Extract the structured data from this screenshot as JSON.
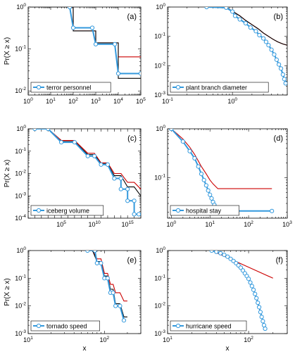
{
  "chart_data": [
    {
      "type": "line",
      "panel": "(a)",
      "x_scale": "log",
      "y_scale": "log",
      "xlim": [
        1,
        100000
      ],
      "ylim": [
        0.008,
        1
      ],
      "x_ticks": [
        1,
        10,
        100,
        1000,
        10000,
        100000
      ],
      "y_ticks": [
        0.01,
        0.1,
        1
      ],
      "ylabel": "Pr(X ≥ x)",
      "xlabel": "",
      "legend": "terror personnel",
      "legend_position": "bottom-left",
      "series": [
        {
          "name": "terror personnel",
          "color": "#3399dd",
          "marker": "circle",
          "x": [
            70,
            100,
            700,
            1000,
            7000,
            10000,
            100000
          ],
          "y": [
            1,
            0.32,
            0.32,
            0.13,
            0.13,
            0.026,
            0.026
          ]
        },
        {
          "color": "#cc0000",
          "x": [
            1,
            100,
            100,
            1000,
            1000,
            10000,
            10000,
            100000
          ],
          "y": [
            1,
            1,
            0.27,
            0.27,
            0.14,
            0.14,
            0.065,
            0.065
          ]
        },
        {
          "color": "#000000",
          "x": [
            1,
            100,
            100,
            1000,
            1000,
            10000,
            10000,
            100000
          ],
          "y": [
            1,
            1,
            0.27,
            0.27,
            0.14,
            0.14,
            0.02,
            0.02
          ]
        }
      ]
    },
    {
      "type": "line",
      "panel": "(b)",
      "x_scale": "log",
      "y_scale": "log",
      "xlim": [
        0.1,
        7
      ],
      "ylim": [
        0.001,
        1
      ],
      "x_ticks": [
        0.1,
        1
      ],
      "y_ticks": [
        0.001,
        0.01,
        0.1,
        1
      ],
      "ylabel": "",
      "xlabel": "",
      "legend": "plant branch diameter",
      "legend_position": "bottom-left",
      "series": [
        {
          "name": "plant branch diameter",
          "color": "#3399dd",
          "marker": "circle",
          "x": [
            0.4,
            0.8,
            1.0,
            1.1,
            1.3,
            1.6,
            1.9,
            2.3,
            2.6,
            3.0,
            3.3,
            3.6,
            4.0,
            4.4,
            4.8,
            5.2,
            5.6,
            6.0,
            6.3,
            6.6
          ],
          "y": [
            1,
            0.95,
            0.7,
            0.5,
            0.38,
            0.28,
            0.2,
            0.15,
            0.11,
            0.085,
            0.065,
            0.05,
            0.035,
            0.024,
            0.016,
            0.011,
            0.008,
            0.005,
            0.0035,
            0.0025
          ]
        },
        {
          "color": "#cc0000",
          "x": [
            0.4,
            0.8,
            1.0,
            1.3,
            1.6,
            2.0,
            2.5,
            3.0,
            3.6,
            4.2,
            5.0,
            6.0,
            7.0
          ],
          "y": [
            1,
            1,
            0.72,
            0.5,
            0.35,
            0.25,
            0.18,
            0.13,
            0.1,
            0.08,
            0.065,
            0.055,
            0.05
          ]
        },
        {
          "color": "#000000",
          "x": [
            0.4,
            0.8,
            1.0,
            1.3,
            1.6,
            2.0,
            2.5,
            3.0,
            3.6,
            4.2,
            5.0,
            6.0,
            7.0
          ],
          "y": [
            1,
            1,
            0.72,
            0.5,
            0.35,
            0.25,
            0.18,
            0.13,
            0.1,
            0.08,
            0.065,
            0.055,
            0.05
          ]
        }
      ]
    },
    {
      "type": "line",
      "panel": "(c)",
      "x_scale": "log",
      "y_scale": "log",
      "xlim": [
        1,
        1e+17
      ],
      "ylim": [
        0.0001,
        1
      ],
      "x_ticks": [
        100000,
        10000000000.0,
        1000000000000000.0
      ],
      "y_ticks": [
        0.0001,
        0.001,
        0.01,
        0.1,
        1
      ],
      "ylabel": "Pr(X ≥ x)",
      "xlabel": "",
      "legend": "iceberg volume",
      "legend_position": "bottom-left",
      "series": [
        {
          "name": "iceberg volume",
          "color": "#3399dd",
          "marker": "circle",
          "x": [
            10,
            1000,
            100000.0,
            10000000.0,
            1000000000.0,
            10000000000.0,
            100000000000.0,
            1000000000000.0,
            10000000000000.0,
            100000000000000.0,
            100000000000000.0,
            1000000000000000.0,
            1000000000000000.0,
            1e+16,
            1e+16,
            5e+16
          ],
          "y": [
            1,
            1,
            0.25,
            0.25,
            0.06,
            0.06,
            0.025,
            0.025,
            0.006,
            0.006,
            0.002,
            0.002,
            0.0006,
            0.0006,
            0.00015,
            0.00015
          ]
        },
        {
          "color": "#cc0000",
          "x": [
            10,
            1000,
            100000.0,
            10000000.0,
            1000000000.0,
            10000000000.0,
            100000000000.0,
            1000000000000.0,
            10000000000000.0,
            100000000000000.0,
            1000000000000000.0,
            1e+16,
            1e+17
          ],
          "y": [
            1,
            1,
            0.3,
            0.3,
            0.08,
            0.08,
            0.03,
            0.03,
            0.01,
            0.01,
            0.004,
            0.004,
            0.002
          ]
        },
        {
          "color": "#000000",
          "x": [
            10,
            1000,
            100000.0,
            10000000.0,
            1000000000.0,
            10000000000.0,
            100000000000.0,
            1000000000000.0,
            10000000000000.0,
            100000000000000.0,
            1000000000000000.0,
            1e+16,
            1e+17
          ],
          "y": [
            1,
            1,
            0.27,
            0.27,
            0.07,
            0.07,
            0.027,
            0.027,
            0.008,
            0.008,
            0.0025,
            0.0025,
            0.001
          ]
        }
      ]
    },
    {
      "type": "line",
      "panel": "(d)",
      "x_scale": "log",
      "y_scale": "log",
      "xlim": [
        0.8,
        1000
      ],
      "ylim": [
        0.015,
        1
      ],
      "x_ticks": [
        1,
        10,
        100,
        1000
      ],
      "y_ticks": [
        0.1,
        1
      ],
      "ylabel": "",
      "xlabel": "",
      "legend": "hospital stay",
      "legend_position": "bottom-left",
      "series": [
        {
          "name": "hospital stay",
          "color": "#3399dd",
          "marker": "circle",
          "x": [
            1,
            2,
            3,
            4,
            5,
            6,
            7,
            8,
            9,
            10,
            11,
            12,
            13,
            14,
            15,
            16,
            400
          ],
          "y": [
            1,
            0.55,
            0.35,
            0.25,
            0.17,
            0.12,
            0.09,
            0.07,
            0.055,
            0.045,
            0.038,
            0.032,
            0.028,
            0.025,
            0.023,
            0.021,
            0.021
          ]
        },
        {
          "color": "#cc0000",
          "x": [
            1,
            2,
            3,
            4,
            5,
            6,
            8,
            10,
            12,
            16,
            400
          ],
          "y": [
            1,
            0.62,
            0.42,
            0.3,
            0.22,
            0.17,
            0.12,
            0.09,
            0.075,
            0.06,
            0.06
          ]
        },
        {
          "color": "#000000",
          "x": [
            1,
            2,
            3,
            4,
            5,
            6,
            7,
            8,
            9,
            10,
            11,
            12,
            13,
            14,
            16,
            400
          ],
          "y": [
            1,
            0.55,
            0.35,
            0.25,
            0.17,
            0.12,
            0.09,
            0.07,
            0.055,
            0.045,
            0.038,
            0.032,
            0.028,
            0.025,
            0.021,
            0.021
          ]
        }
      ]
    },
    {
      "type": "line",
      "panel": "(e)",
      "x_scale": "log",
      "y_scale": "log",
      "xlim": [
        10,
        300
      ],
      "ylim": [
        0.001,
        1
      ],
      "x_ticks": [
        10,
        100
      ],
      "y_ticks": [
        0.001,
        0.01,
        0.1,
        1
      ],
      "ylabel": "Pr(X ≥ x)",
      "xlabel": "x",
      "legend": "tornado speed",
      "legend_position": "bottom-left",
      "series": [
        {
          "name": "tornado speed",
          "color": "#3399dd",
          "marker": "circle",
          "x": [
            60,
            75,
            80,
            90,
            100,
            110,
            120,
            130,
            140,
            160,
            180
          ],
          "y": [
            1,
            1,
            0.35,
            0.35,
            0.1,
            0.1,
            0.03,
            0.03,
            0.01,
            0.01,
            0.003
          ]
        },
        {
          "color": "#cc0000",
          "x": [
            70,
            80,
            90,
            100,
            110,
            120,
            130,
            140,
            160,
            180,
            200
          ],
          "y": [
            1,
            0.5,
            0.5,
            0.15,
            0.15,
            0.06,
            0.06,
            0.03,
            0.03,
            0.015,
            0.015
          ]
        },
        {
          "color": "#000000",
          "x": [
            70,
            80,
            90,
            100,
            110,
            120,
            130,
            140,
            160,
            180,
            200
          ],
          "y": [
            1,
            0.4,
            0.4,
            0.12,
            0.12,
            0.04,
            0.04,
            0.012,
            0.012,
            0.004,
            0.004
          ]
        }
      ]
    },
    {
      "type": "line",
      "panel": "(f)",
      "x_scale": "log",
      "y_scale": "log",
      "xlim": [
        10,
        300
      ],
      "ylim": [
        0.001,
        1
      ],
      "x_ticks": [
        10,
        100
      ],
      "y_ticks": [
        0.001,
        0.01,
        0.1,
        1
      ],
      "ylabel": "",
      "xlabel": "x",
      "legend": "hurricane speed",
      "legend_position": "bottom-left",
      "series": [
        {
          "name": "hurricane speed",
          "color": "#3399dd",
          "marker": "circle",
          "x": [
            35,
            40,
            45,
            50,
            55,
            60,
            65,
            70,
            75,
            80,
            85,
            90,
            95,
            100,
            105,
            110,
            115,
            120,
            125,
            130,
            135,
            140,
            145,
            150,
            155,
            160
          ],
          "y": [
            1,
            0.9,
            0.8,
            0.7,
            0.6,
            0.5,
            0.42,
            0.35,
            0.29,
            0.24,
            0.19,
            0.15,
            0.12,
            0.095,
            0.07,
            0.052,
            0.038,
            0.027,
            0.019,
            0.013,
            0.009,
            0.006,
            0.004,
            0.0028,
            0.002,
            0.0015
          ]
        },
        {
          "color": "#cc0000",
          "x": [
            35,
            200
          ],
          "y": [
            1,
            0.1
          ]
        },
        {
          "color": "#000000",
          "x": [
            35,
            50,
            60,
            70,
            80,
            90,
            100,
            110,
            120,
            130,
            140,
            150,
            160
          ],
          "y": [
            1,
            0.75,
            0.55,
            0.4,
            0.27,
            0.17,
            0.1,
            0.055,
            0.028,
            0.013,
            0.006,
            0.0028,
            0.0013
          ]
        }
      ]
    }
  ]
}
